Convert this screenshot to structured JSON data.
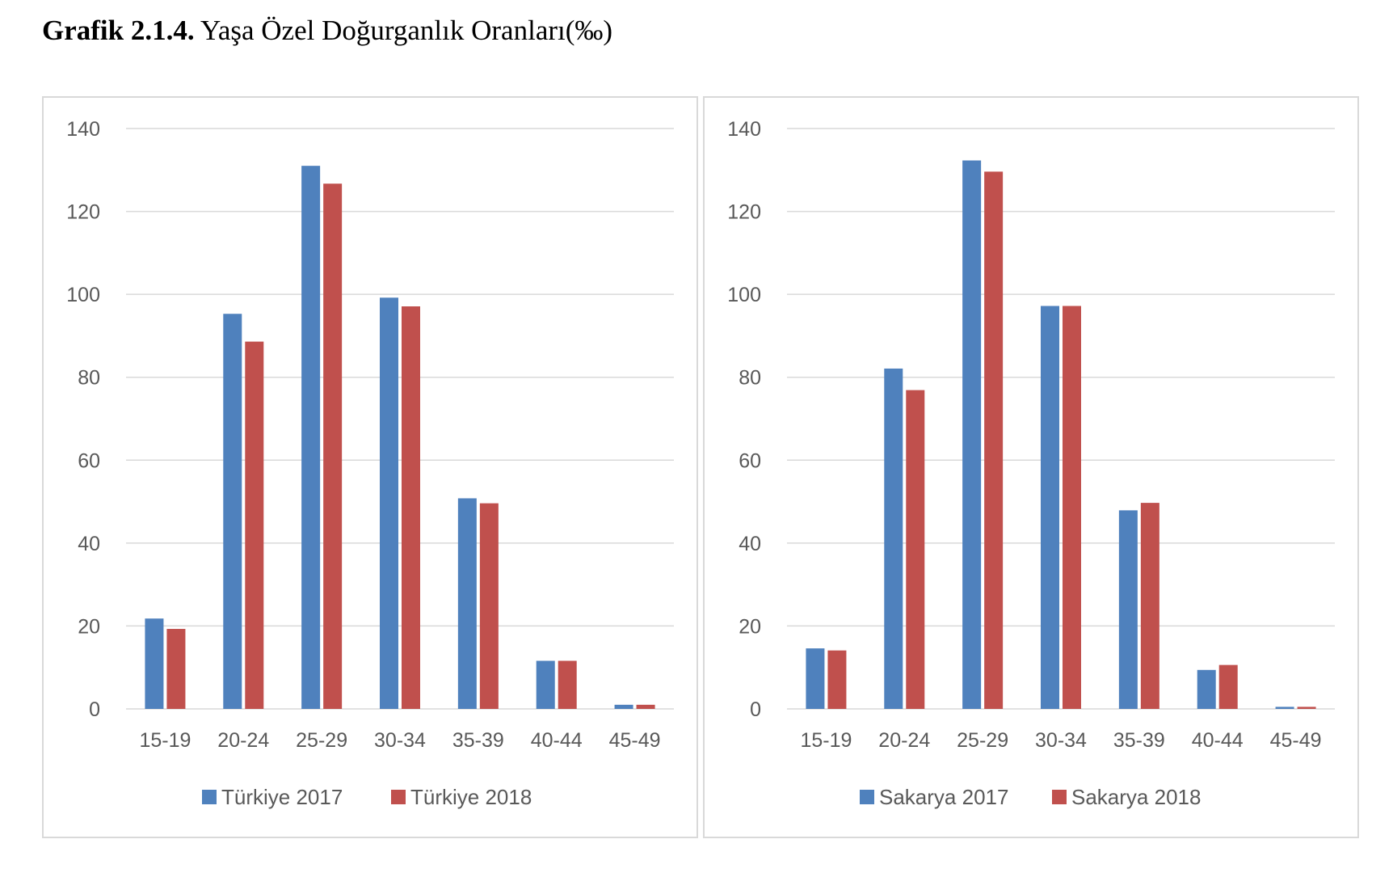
{
  "title": {
    "label": "Grafik 2.1.4.",
    "text": " Yaşa Özel Doğurganlık Oranları(‰)"
  },
  "colors": {
    "series_2017": "#4f81bd",
    "series_2018": "#c0504d",
    "gridline": "#d9d9d9",
    "axis_text": "#595959"
  },
  "chart_data": [
    {
      "type": "bar",
      "categories": [
        "15-19",
        "20-24",
        "25-29",
        "30-34",
        "35-39",
        "40-44",
        "45-49"
      ],
      "series": [
        {
          "name": "Türkiye 2017",
          "values": [
            21.8,
            95.3,
            131,
            99.2,
            50.8,
            11.6,
            1.0
          ]
        },
        {
          "name": "Türkiye 2018",
          "values": [
            19.3,
            88.6,
            126.7,
            97.1,
            49.6,
            11.6,
            1.0
          ]
        }
      ],
      "yticks": [
        "0",
        "20",
        "40",
        "60",
        "80",
        "100",
        "120",
        "140"
      ],
      "ylim": [
        0,
        140
      ],
      "grid": true,
      "legend": "bottom"
    },
    {
      "type": "bar",
      "categories": [
        "15-19",
        "20-24",
        "25-29",
        "30-34",
        "35-39",
        "40-44",
        "45-49"
      ],
      "series": [
        {
          "name": "Sakarya 2017",
          "values": [
            14.6,
            82.1,
            132.3,
            97.2,
            47.9,
            9.4,
            0.5
          ]
        },
        {
          "name": "Sakarya 2018",
          "values": [
            14.1,
            76.9,
            129.6,
            97.2,
            49.7,
            10.6,
            0.5
          ]
        }
      ],
      "yticks": [
        "0",
        "20",
        "40",
        "60",
        "80",
        "100",
        "120",
        "140"
      ],
      "ylim": [
        0,
        140
      ],
      "grid": true,
      "legend": "bottom"
    }
  ]
}
